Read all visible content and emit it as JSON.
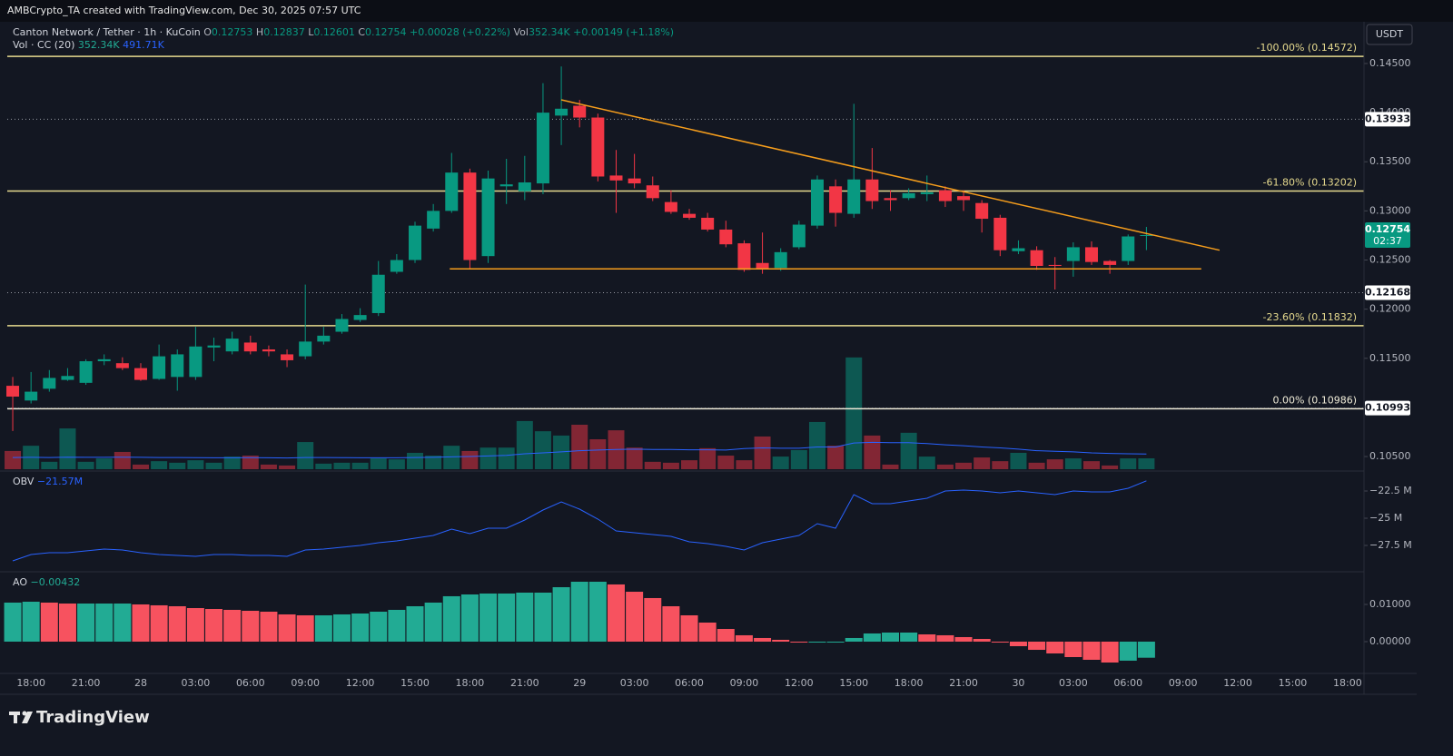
{
  "header": {
    "created": "AMBCrypto_TA created with TradingView.com, Dec 30, 2025 07:57 UTC",
    "brand": "TradingView"
  },
  "chart_data": [
    {
      "type": "candlestick",
      "title": "Canton Network / Tether · 1h · KuCoin",
      "currency": "USDT",
      "ohlc_labels": [
        "O",
        "H",
        "L",
        "C"
      ],
      "change": "+0.00028 (+0.22%)",
      "volume_prefix": "Vol",
      "volume_text": "352.34K",
      "volume_change": "+0.00149 (+1.18%)",
      "countdown": "02:37",
      "up_color": "#089981",
      "down_color": "#f23645",
      "open": [
        0.1122,
        0.1107,
        0.1119,
        0.1128,
        0.1125,
        0.1147,
        0.1145,
        0.114,
        0.1129,
        0.1131,
        0.1131,
        0.1161,
        0.1157,
        0.1166,
        0.1159,
        0.1154,
        0.1152,
        0.1167,
        0.1177,
        0.1189,
        0.1196,
        0.1238,
        0.125,
        0.1282,
        0.13,
        0.1339,
        0.1254,
        0.1325,
        0.132,
        0.1328,
        0.1397,
        0.1407,
        0.1395,
        0.1336,
        0.1333,
        0.1326,
        0.1309,
        0.1297,
        0.1293,
        0.1281,
        0.1267,
        0.1247,
        0.1242,
        0.1263,
        0.1285,
        0.1325,
        0.1297,
        0.1332,
        0.1313,
        0.1313,
        0.1317,
        0.1321,
        0.1315,
        0.1308,
        0.1293,
        0.1259,
        0.126,
        0.1245,
        0.1249,
        0.1263,
        0.1249,
        0.1249,
        0.12753
      ],
      "high": [
        0.1131,
        0.1136,
        0.1138,
        0.114,
        0.1149,
        0.1154,
        0.1151,
        0.1145,
        0.1164,
        0.1159,
        0.1182,
        0.1171,
        0.1177,
        0.1173,
        0.1163,
        0.1159,
        0.1225,
        0.1182,
        0.1195,
        0.1201,
        0.1249,
        0.1256,
        0.1289,
        0.1307,
        0.1359,
        0.1343,
        0.1341,
        0.1353,
        0.1356,
        0.143,
        0.1447,
        0.1413,
        0.1399,
        0.1362,
        0.1358,
        0.1335,
        0.1321,
        0.1302,
        0.1298,
        0.129,
        0.127,
        0.1278,
        0.1262,
        0.129,
        0.1336,
        0.1332,
        0.1409,
        0.1364,
        0.1321,
        0.1323,
        0.1336,
        0.1325,
        0.1321,
        0.1311,
        0.1296,
        0.127,
        0.1264,
        0.1253,
        0.1268,
        0.1269,
        0.125,
        0.1276,
        0.12837
      ],
      "low": [
        0.1076,
        0.1104,
        0.1116,
        0.1127,
        0.1123,
        0.1143,
        0.1138,
        0.1127,
        0.1128,
        0.1117,
        0.1128,
        0.1147,
        0.1154,
        0.1154,
        0.1152,
        0.1141,
        0.1149,
        0.1164,
        0.1175,
        0.1187,
        0.1193,
        0.1236,
        0.1247,
        0.1279,
        0.1298,
        0.1241,
        0.1247,
        0.1307,
        0.1311,
        0.1317,
        0.1367,
        0.1385,
        0.133,
        0.1298,
        0.1323,
        0.131,
        0.1297,
        0.1291,
        0.1279,
        0.1263,
        0.1238,
        0.1236,
        0.1239,
        0.1261,
        0.1282,
        0.1284,
        0.1293,
        0.1302,
        0.13,
        0.1311,
        0.131,
        0.1304,
        0.13,
        0.1278,
        0.1254,
        0.1256,
        0.124,
        0.122,
        0.1233,
        0.1245,
        0.1236,
        0.1245,
        0.12601
      ],
      "close": [
        0.1111,
        0.1116,
        0.113,
        0.1132,
        0.1147,
        0.1149,
        0.114,
        0.1128,
        0.1152,
        0.1154,
        0.1162,
        0.1163,
        0.117,
        0.1157,
        0.1157,
        0.1148,
        0.1167,
        0.1173,
        0.119,
        0.1194,
        0.1235,
        0.125,
        0.1285,
        0.13,
        0.1339,
        0.125,
        0.1333,
        0.1327,
        0.1329,
        0.14,
        0.1404,
        0.1395,
        0.1335,
        0.1331,
        0.1328,
        0.1313,
        0.1299,
        0.1293,
        0.1281,
        0.1266,
        0.124,
        0.1241,
        0.1258,
        0.1286,
        0.1332,
        0.1298,
        0.1332,
        0.131,
        0.1311,
        0.1318,
        0.1319,
        0.131,
        0.1311,
        0.1292,
        0.126,
        0.1262,
        0.1244,
        0.1244,
        0.1263,
        0.1248,
        0.1245,
        0.1274,
        0.12754
      ],
      "xlim": [
        -0.3,
        73.9
      ],
      "xticks": [
        {
          "value": 1,
          "label": "18:00"
        },
        {
          "value": 4,
          "label": "21:00"
        },
        {
          "value": 7,
          "label": "28"
        },
        {
          "value": 10,
          "label": "03:00"
        },
        {
          "value": 13,
          "label": "06:00"
        },
        {
          "value": 16,
          "label": "09:00"
        },
        {
          "value": 19,
          "label": "12:00"
        },
        {
          "value": 22,
          "label": "15:00"
        },
        {
          "value": 25,
          "label": "18:00"
        },
        {
          "value": 28,
          "label": "21:00"
        },
        {
          "value": 31,
          "label": "29"
        },
        {
          "value": 34,
          "label": "03:00"
        },
        {
          "value": 37,
          "label": "06:00"
        },
        {
          "value": 40,
          "label": "09:00"
        },
        {
          "value": 43,
          "label": "12:00"
        },
        {
          "value": 46,
          "label": "15:00"
        },
        {
          "value": 49,
          "label": "18:00"
        },
        {
          "value": 52,
          "label": "21:00"
        },
        {
          "value": 55,
          "label": "30"
        },
        {
          "value": 58,
          "label": "03:00"
        },
        {
          "value": 61,
          "label": "06:00"
        },
        {
          "value": 64,
          "label": "09:00"
        },
        {
          "value": 67,
          "label": "12:00"
        },
        {
          "value": 70,
          "label": "15:00"
        },
        {
          "value": 73,
          "label": "18:00"
        }
      ],
      "ylim": [
        0.10371,
        0.14897
      ],
      "yticks": [
        {
          "value": 0.145,
          "label": "0.14500"
        },
        {
          "value": 0.14,
          "label": "0.14000"
        },
        {
          "value": 0.135,
          "label": "0.13500"
        },
        {
          "value": 0.13,
          "label": "0.13000"
        },
        {
          "value": 0.125,
          "label": "0.12500"
        },
        {
          "value": 0.12,
          "label": "0.12000"
        },
        {
          "value": 0.115,
          "label": "0.11500"
        },
        {
          "value": 0.11,
          "label": "0.11000"
        },
        {
          "value": 0.105,
          "label": "0.10500"
        }
      ],
      "levels": [
        {
          "label": "-100.00% (0.14572)",
          "value": 0.14572,
          "color": "#e6da8e"
        },
        {
          "label": "-61.80% (0.13202)",
          "value": 0.13202,
          "color": "#e6da8e"
        },
        {
          "label": "-23.60% (0.11832)",
          "value": 0.11832,
          "color": "#e6da8e"
        },
        {
          "label": "0.00% (0.10986)",
          "value": 0.10986,
          "color": "#f0ecd8"
        }
      ],
      "price_lines": [
        0.13933,
        0.12168,
        0.10993
      ],
      "trendlines": [
        {
          "color": "#f59d1c",
          "points": [
            [
              30,
              0.1413
            ],
            [
              66,
              0.126
            ]
          ]
        },
        {
          "color": "#f59d1c",
          "points": [
            [
              23.9,
              0.1241
            ],
            [
              65,
              0.1241
            ]
          ]
        }
      ]
    },
    {
      "type": "bar",
      "name": "Vol · CC (20)",
      "value_label": "352.34K",
      "values": [
        590,
        760,
        240,
        1320,
        240,
        350,
        560,
        150,
        260,
        210,
        290,
        210,
        410,
        440,
        150,
        120,
        880,
        180,
        210,
        210,
        350,
        320,
        530,
        440,
        760,
        590,
        700,
        700,
        1560,
        1230,
        1090,
        1440,
        970,
        1260,
        700,
        240,
        210,
        290,
        680,
        440,
        290,
        1060,
        410,
        620,
        1530,
        760,
        3620,
        1090,
        150,
        1180,
        410,
        150,
        210,
        380,
        260,
        530,
        210,
        320,
        350,
        260,
        120,
        350,
        352.34
      ],
      "ylim": [
        0,
        14400
      ],
      "ma": {
        "label": "491.71K",
        "color": "#2962ff",
        "values": [
          380,
          385,
          380,
          390,
          385,
          385,
          390,
          385,
          380,
          380,
          375,
          370,
          370,
          375,
          370,
          365,
          380,
          380,
          375,
          370,
          370,
          370,
          380,
          385,
          400,
          410,
          430,
          450,
          500,
          530,
          560,
          600,
          620,
          640,
          650,
          640,
          640,
          630,
          630,
          620,
          670,
          690,
          680,
          680,
          720,
          720,
          850,
          870,
          860,
          860,
          830,
          790,
          760,
          720,
          690,
          650,
          600,
          580,
          560,
          530,
          510,
          500,
          491.71
        ]
      }
    },
    {
      "type": "line",
      "name": "OBV",
      "value_label": "−21.57M",
      "color": "#2962ff",
      "values": [
        -28.92,
        -28.33,
        -28.17,
        -28.17,
        -28.0,
        -27.83,
        -27.92,
        -28.17,
        -28.33,
        -28.42,
        -28.5,
        -28.33,
        -28.33,
        -28.42,
        -28.42,
        -28.5,
        -27.92,
        -27.83,
        -27.67,
        -27.5,
        -27.25,
        -27.08,
        -26.83,
        -26.58,
        -26.0,
        -26.42,
        -25.92,
        -25.92,
        -25.17,
        -24.25,
        -23.5,
        -24.17,
        -25.08,
        -26.17,
        -26.33,
        -26.5,
        -26.67,
        -27.17,
        -27.33,
        -27.58,
        -27.92,
        -27.25,
        -26.92,
        -26.58,
        -25.5,
        -25.92,
        -22.83,
        -23.67,
        -23.67,
        -23.42,
        -23.17,
        -22.5,
        -22.42,
        -22.5,
        -22.67,
        -22.5,
        -22.67,
        -22.83,
        -22.5,
        -22.58,
        -22.58,
        -22.25,
        -21.57
      ],
      "ylim": [
        -29.75,
        -20.75
      ],
      "yticks": [
        {
          "value": -22.5,
          "label": "−22.5 M"
        },
        {
          "value": -25,
          "label": "−25 M"
        },
        {
          "value": -27.5,
          "label": "−27.5 M"
        }
      ]
    },
    {
      "type": "bar",
      "name": "AO",
      "value_label": "−0.00432",
      "up_color": "#22ab94",
      "down_color": "#f7525f",
      "values": [
        0.01049,
        0.01073,
        0.01049,
        0.01024,
        0.01024,
        0.01024,
        0.01024,
        0.01,
        0.00976,
        0.00951,
        0.00902,
        0.00878,
        0.00854,
        0.00829,
        0.00805,
        0.00732,
        0.00707,
        0.00707,
        0.00732,
        0.00756,
        0.00805,
        0.00854,
        0.00951,
        0.01049,
        0.0122,
        0.01268,
        0.01293,
        0.01293,
        0.01317,
        0.01317,
        0.01463,
        0.0161,
        0.0161,
        0.01537,
        0.01341,
        0.01171,
        0.00951,
        0.00707,
        0.00512,
        0.00341,
        0.00171,
        0.00098,
        0.00049,
        -0.00024,
        -0.00024,
        0,
        0.00098,
        0.0022,
        0.00244,
        0.00244,
        0.00195,
        0.00171,
        0.00122,
        0.00073,
        -0.00024,
        -0.00122,
        -0.0022,
        -0.00317,
        -0.00415,
        -0.00488,
        -0.00561,
        -0.00512,
        -0.00432
      ],
      "ylim": [
        -0.00805,
        0.01829
      ],
      "yticks": [
        {
          "value": 0.01,
          "label": "0.01000"
        },
        {
          "value": 0,
          "label": "0.00000"
        }
      ]
    }
  ]
}
